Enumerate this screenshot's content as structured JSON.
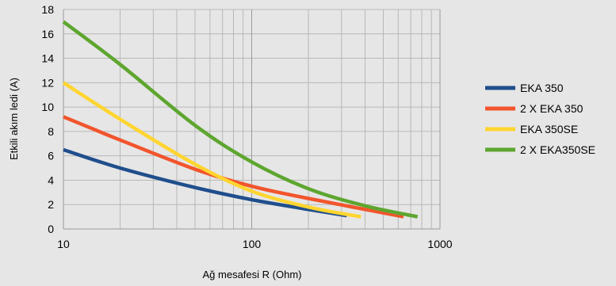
{
  "chart_data": {
    "type": "line",
    "xlabel": "Ağ mesafesi R (Ohm)",
    "ylabel": "Etkili akım ledi (A)",
    "x_scale": "log",
    "xlim": [
      10,
      1000
    ],
    "ylim": [
      0,
      18
    ],
    "x_ticks": [
      10,
      100,
      1000
    ],
    "y_ticks": [
      0,
      2,
      4,
      6,
      8,
      10,
      12,
      14,
      16,
      18
    ],
    "grid": true,
    "legend_position": "right",
    "series": [
      {
        "name": "EKA 350",
        "color": "#1f4e8c",
        "x": [
          10,
          20,
          50,
          100,
          200,
          320
        ],
        "y": [
          6.5,
          5.0,
          3.4,
          2.4,
          1.6,
          1.1
        ]
      },
      {
        "name": "2 X EKA 350",
        "color": "#f2552c",
        "x": [
          10,
          20,
          50,
          100,
          200,
          640
        ],
        "y": [
          9.2,
          7.3,
          4.9,
          3.5,
          2.5,
          1.0
        ]
      },
      {
        "name": "EKA 350SE",
        "color": "#ffd530",
        "x": [
          10,
          20,
          50,
          100,
          200,
          380
        ],
        "y": [
          12.0,
          9.0,
          5.3,
          3.1,
          1.8,
          1.0
        ]
      },
      {
        "name": "2 X EKA350SE",
        "color": "#5ea62f",
        "x": [
          10,
          20,
          50,
          100,
          200,
          400,
          760
        ],
        "y": [
          17.0,
          13.5,
          8.5,
          5.5,
          3.3,
          1.9,
          1.0
        ]
      }
    ]
  }
}
